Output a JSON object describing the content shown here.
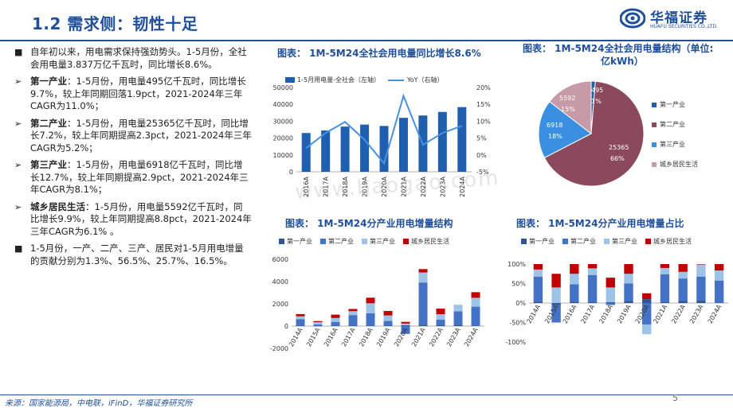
{
  "slide_title": "1.2 需求侧：韧性十足",
  "logo": {
    "cn": "华福证券",
    "en": "HUAFU SECURITIES CO.,LTD."
  },
  "watermark": "www.baogao.com",
  "bullets": [
    {
      "mark": "■",
      "head": "",
      "text": "自年初以来，用电需求保持强劲势头。1-5月份，全社会用电量3.837万亿千瓦时，同比增长8.6%。"
    },
    {
      "mark": "➢",
      "head": "第一产业",
      "text": "：1-5月份，用电量495亿千瓦时，同比增长9.7%，较上年同期回落1.9pct，2021-2024年三年CAGR为11.0%；"
    },
    {
      "mark": "➢",
      "head": "第二产业",
      "text": "：1-5月份，用电量25365亿千瓦时，同比增长7.2%，较上年同期提高2.3pct，2021-2024年三年CAGR为5.2%；"
    },
    {
      "mark": "➢",
      "head": "第三产业",
      "text": "：1-5月份，用电量6918亿千瓦时，同比增长12.7%，较上年同期提高2.9pct，2021-2024年三年CAGR为8.1%；"
    },
    {
      "mark": "➢",
      "head": "城乡居民生活",
      "text": "：1-5月份，用电量5592亿千瓦时，同比增长9.9%，较上年同期提高8.8pct，2021-2024年三年CAGR为6.1% 。"
    },
    {
      "mark": "■",
      "head": "",
      "text": "1-5月份，一产、二产、三产、居民对1-5月用电增量的贡献分别为1.3%、56.5%、25.7%、16.5%。"
    }
  ],
  "chart_titles": {
    "c1": "图表：  1M-5M24全社会用电量同比增长8.6%",
    "c2a": "图表：  1M-5M24全社会用电量结构（单位:",
    "c2b": "亿kWh）",
    "c3": "图表：  1M-5M24分产业用电增量结构",
    "c4": "图表：  1M-5M24分产业用电增量占比"
  },
  "legend_c1": {
    "bar": "1-5月用电量-全社会（左轴）",
    "line": "YoY（右轴）"
  },
  "legend_sectors": [
    "第一产业",
    "第二产业",
    "第三产业",
    "城乡居民生活"
  ],
  "colors": {
    "primary": "#1f4e9a",
    "s1": "#1f5fb0",
    "s2": "#8b4a5c",
    "s3": "#3a8fe0",
    "s4": "#c79aa8",
    "line": "#4a90e2",
    "c3_s1": "#2f5597",
    "c3_s2": "#4472c4",
    "c3_s3": "#9dc3e6",
    "c3_s4": "#c00000"
  },
  "chart_data": [
    {
      "type": "bar",
      "categories": [
        "2016A",
        "2017A",
        "2018A",
        "2019A",
        "2020A",
        "2021A",
        "2022A",
        "2023A",
        "2024A"
      ],
      "series": [
        {
          "name": "1-5月用电量-全社会（左轴）",
          "axis": "left",
          "values": [
            23000,
            24500,
            26800,
            28000,
            27200,
            32000,
            33400,
            35500,
            38370
          ]
        },
        {
          "name": "YoY（右轴）",
          "axis": "right",
          "type": "line",
          "values": [
            2.0,
            6.5,
            9.8,
            4.5,
            -2.5,
            17.5,
            3.0,
            6.5,
            8.6
          ]
        }
      ],
      "y_left": {
        "ticks": [
          "0",
          "10000",
          "20000",
          "30000",
          "40000",
          "50000"
        ],
        "ylim": [
          0,
          50000
        ]
      },
      "y_right": {
        "ticks": [
          "-5%",
          "0%",
          "5%",
          "10%",
          "15%",
          "20%"
        ],
        "ylim": [
          -5,
          20
        ]
      }
    },
    {
      "type": "pie",
      "labels": [
        "第一产业",
        "第二产业",
        "第三产业",
        "城乡居民生活"
      ],
      "values": [
        495,
        25365,
        6918,
        5592
      ],
      "percent_labels": [
        "1%",
        "66%",
        "18%",
        "15%"
      ],
      "value_labels": [
        "495",
        "25365",
        "6918",
        "5592"
      ]
    },
    {
      "type": "bar",
      "stacked": true,
      "categories": [
        "2014A",
        "2015A",
        "2016A",
        "2017A",
        "2018A",
        "2019A",
        "2020A",
        "2021A",
        "2022A",
        "2023A",
        "2024A"
      ],
      "series": [
        {
          "name": "第一产业",
          "values": [
            30,
            -20,
            30,
            40,
            50,
            60,
            80,
            120,
            70,
            120,
            44
          ]
        },
        {
          "name": "第二产业",
          "values": [
            600,
            150,
            350,
            950,
            1100,
            400,
            -700,
            3800,
            500,
            1200,
            1700
          ]
        },
        {
          "name": "第三产业",
          "values": [
            250,
            200,
            350,
            350,
            900,
            500,
            150,
            900,
            500,
            600,
            800
          ]
        },
        {
          "name": "城乡居民生活",
          "values": [
            200,
            100,
            300,
            200,
            500,
            400,
            150,
            300,
            500,
            0,
            500
          ]
        }
      ],
      "y": {
        "ticks": [
          "-2000",
          "0",
          "2000",
          "4000",
          "6000"
        ],
        "ylim": [
          -2000,
          6000
        ]
      }
    },
    {
      "type": "bar",
      "stacked": true,
      "categories": [
        "2014A",
        "2015A",
        "2016A",
        "2017A",
        "2018A",
        "2019A",
        "2020A",
        "2021A",
        "2022A",
        "2023A",
        "2024A"
      ],
      "series": [
        {
          "name": "第一产业",
          "values": [
            3,
            -5,
            3,
            2,
            2,
            5,
            10,
            2,
            5,
            6,
            1.3
          ]
        },
        {
          "name": "第二产业",
          "values": [
            65,
            -45,
            45,
            70,
            -5,
            45,
            -55,
            72,
            58,
            62,
            56.5
          ]
        },
        {
          "name": "第三产业",
          "values": [
            18,
            40,
            27,
            17,
            38,
            25,
            -25,
            16,
            17,
            31,
            25.7
          ]
        },
        {
          "name": "城乡居民生活",
          "values": [
            14,
            35,
            25,
            11,
            25,
            25,
            15,
            10,
            20,
            1,
            16.5
          ]
        }
      ],
      "y": {
        "ticks": [
          "-100%",
          "-50%",
          "0%",
          "50%",
          "100%"
        ],
        "ylim": [
          -100,
          100
        ]
      }
    }
  ],
  "source": "来源：国家能源局，中电联，iFinD，华福证券研究所",
  "page_number": "5"
}
